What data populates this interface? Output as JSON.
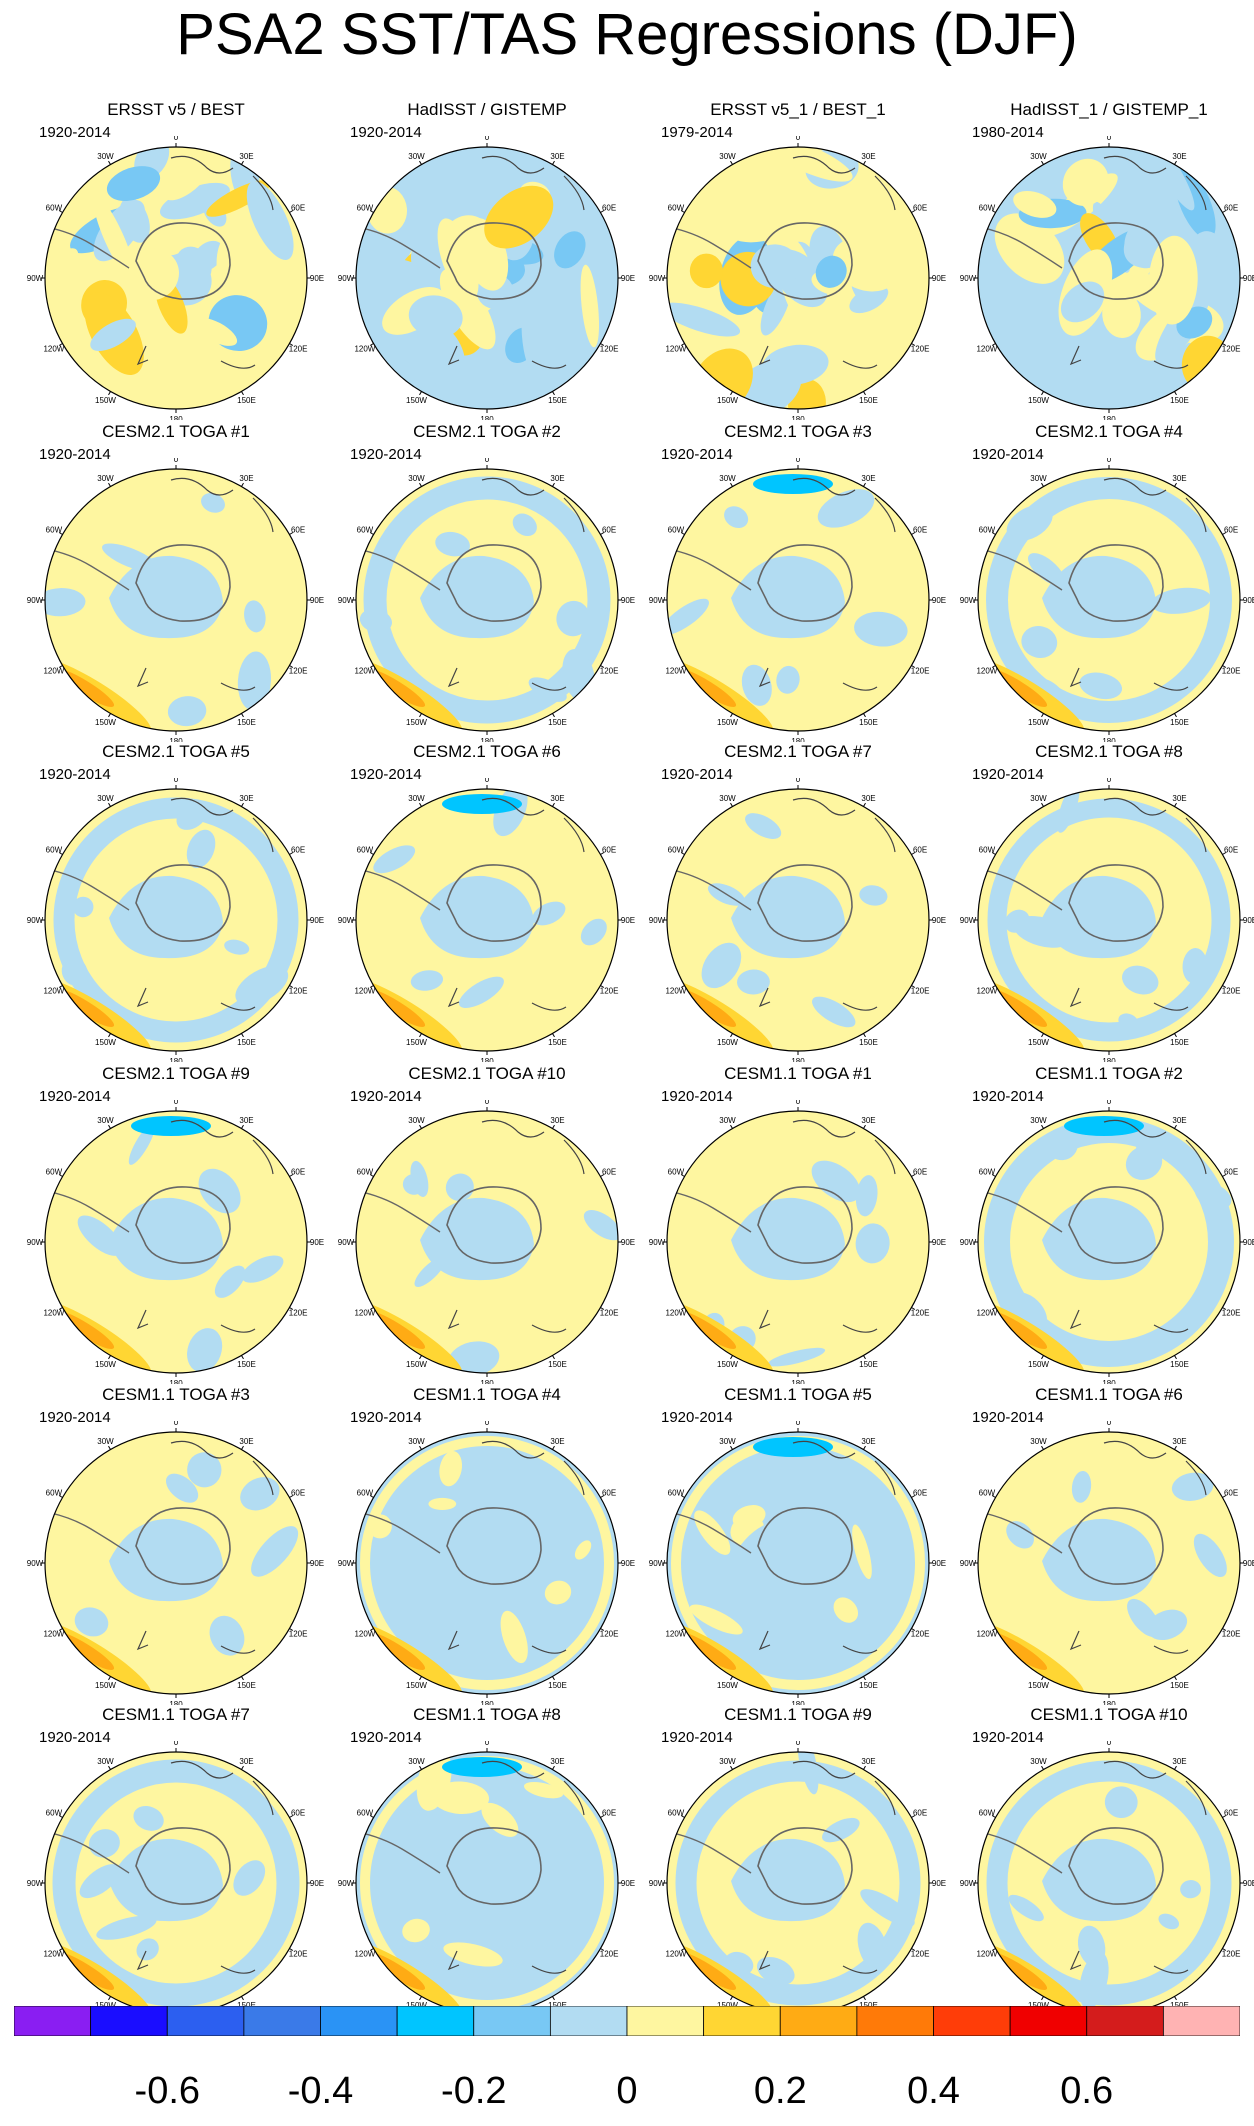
{
  "title": "PSA2 SST/TAS Regressions (DJF)",
  "longitude_labels": [
    "0",
    "30E",
    "60E",
    "90E",
    "120E",
    "150E",
    "180",
    "150W",
    "120W",
    "90W",
    "60W",
    "30W"
  ],
  "palette": [
    "#8a1ef2",
    "#1a0dff",
    "#2c5ff0",
    "#3a7ae8",
    "#2a93f5",
    "#00c5ff",
    "#78c8f4",
    "#b2dcf2",
    "#fef6a0",
    "#ffd633",
    "#ffab14",
    "#ff7a08",
    "#ff3d08",
    "#f00000",
    "#d41c1c",
    "#ffb3b3"
  ],
  "colorbar": {
    "labels": [
      "-0.6",
      "-0.4",
      "-0.2",
      "0",
      "0.2",
      "0.4",
      "0.6"
    ],
    "label_values": [
      -0.6,
      -0.4,
      -0.2,
      0,
      0.2,
      0.4,
      0.6
    ],
    "min": -0.8,
    "max": 0.8
  },
  "panels": [
    {
      "title": "ERSST v5 / BEST",
      "years": "1920-2014",
      "style": "obs",
      "sign": 1
    },
    {
      "title": "HadISST / GISTEMP",
      "years": "1920-2014",
      "style": "obs",
      "sign": -1
    },
    {
      "title": "ERSST v5_1 / BEST_1",
      "years": "1979-2014",
      "style": "obs",
      "sign": 1
    },
    {
      "title": "HadISST_1 / GISTEMP_1",
      "years": "1980-2014",
      "style": "obs",
      "sign": -1
    },
    {
      "title": "CESM2.1 TOGA #1",
      "years": "1920-2014",
      "style": "yellow",
      "sign": 1
    },
    {
      "title": "CESM2.1 TOGA #2",
      "years": "1920-2014",
      "style": "ring",
      "sign": 1
    },
    {
      "title": "CESM2.1 TOGA #3",
      "years": "1920-2014",
      "style": "yellow",
      "sign": 1
    },
    {
      "title": "CESM2.1 TOGA #4",
      "years": "1920-2014",
      "style": "ring",
      "sign": 1
    },
    {
      "title": "CESM2.1 TOGA #5",
      "years": "1920-2014",
      "style": "ring",
      "sign": 1
    },
    {
      "title": "CESM2.1 TOGA #6",
      "years": "1920-2014",
      "style": "yellow",
      "sign": 1
    },
    {
      "title": "CESM2.1 TOGA #7",
      "years": "1920-2014",
      "style": "yellow",
      "sign": 1
    },
    {
      "title": "CESM2.1 TOGA #8",
      "years": "1920-2014",
      "style": "ring",
      "sign": 1
    },
    {
      "title": "CESM2.1 TOGA #9",
      "years": "1920-2014",
      "style": "yellow",
      "sign": 1
    },
    {
      "title": "CESM2.1 TOGA #10",
      "years": "1920-2014",
      "style": "yellow",
      "sign": 1
    },
    {
      "title": "CESM1.1 TOGA #1",
      "years": "1920-2014",
      "style": "yellow",
      "sign": 1
    },
    {
      "title": "CESM1.1 TOGA #2",
      "years": "1920-2014",
      "style": "ring",
      "sign": 1
    },
    {
      "title": "CESM1.1 TOGA #3",
      "years": "1920-2014",
      "style": "yellow",
      "sign": 1
    },
    {
      "title": "CESM1.1 TOGA #4",
      "years": "1920-2014",
      "style": "blue",
      "sign": 1
    },
    {
      "title": "CESM1.1 TOGA #5",
      "years": "1920-2014",
      "style": "blue",
      "sign": 1
    },
    {
      "title": "CESM1.1 TOGA #6",
      "years": "1920-2014",
      "style": "yellow",
      "sign": 1
    },
    {
      "title": "CESM1.1 TOGA #7",
      "years": "1920-2014",
      "style": "ring",
      "sign": 1
    },
    {
      "title": "CESM1.1 TOGA #8",
      "years": "1920-2014",
      "style": "blue",
      "sign": 1
    },
    {
      "title": "CESM1.1 TOGA #9",
      "years": "1920-2014",
      "style": "ring",
      "sign": 1
    },
    {
      "title": "CESM1.1 TOGA #10",
      "years": "1920-2014",
      "style": "ring",
      "sign": 1
    }
  ]
}
